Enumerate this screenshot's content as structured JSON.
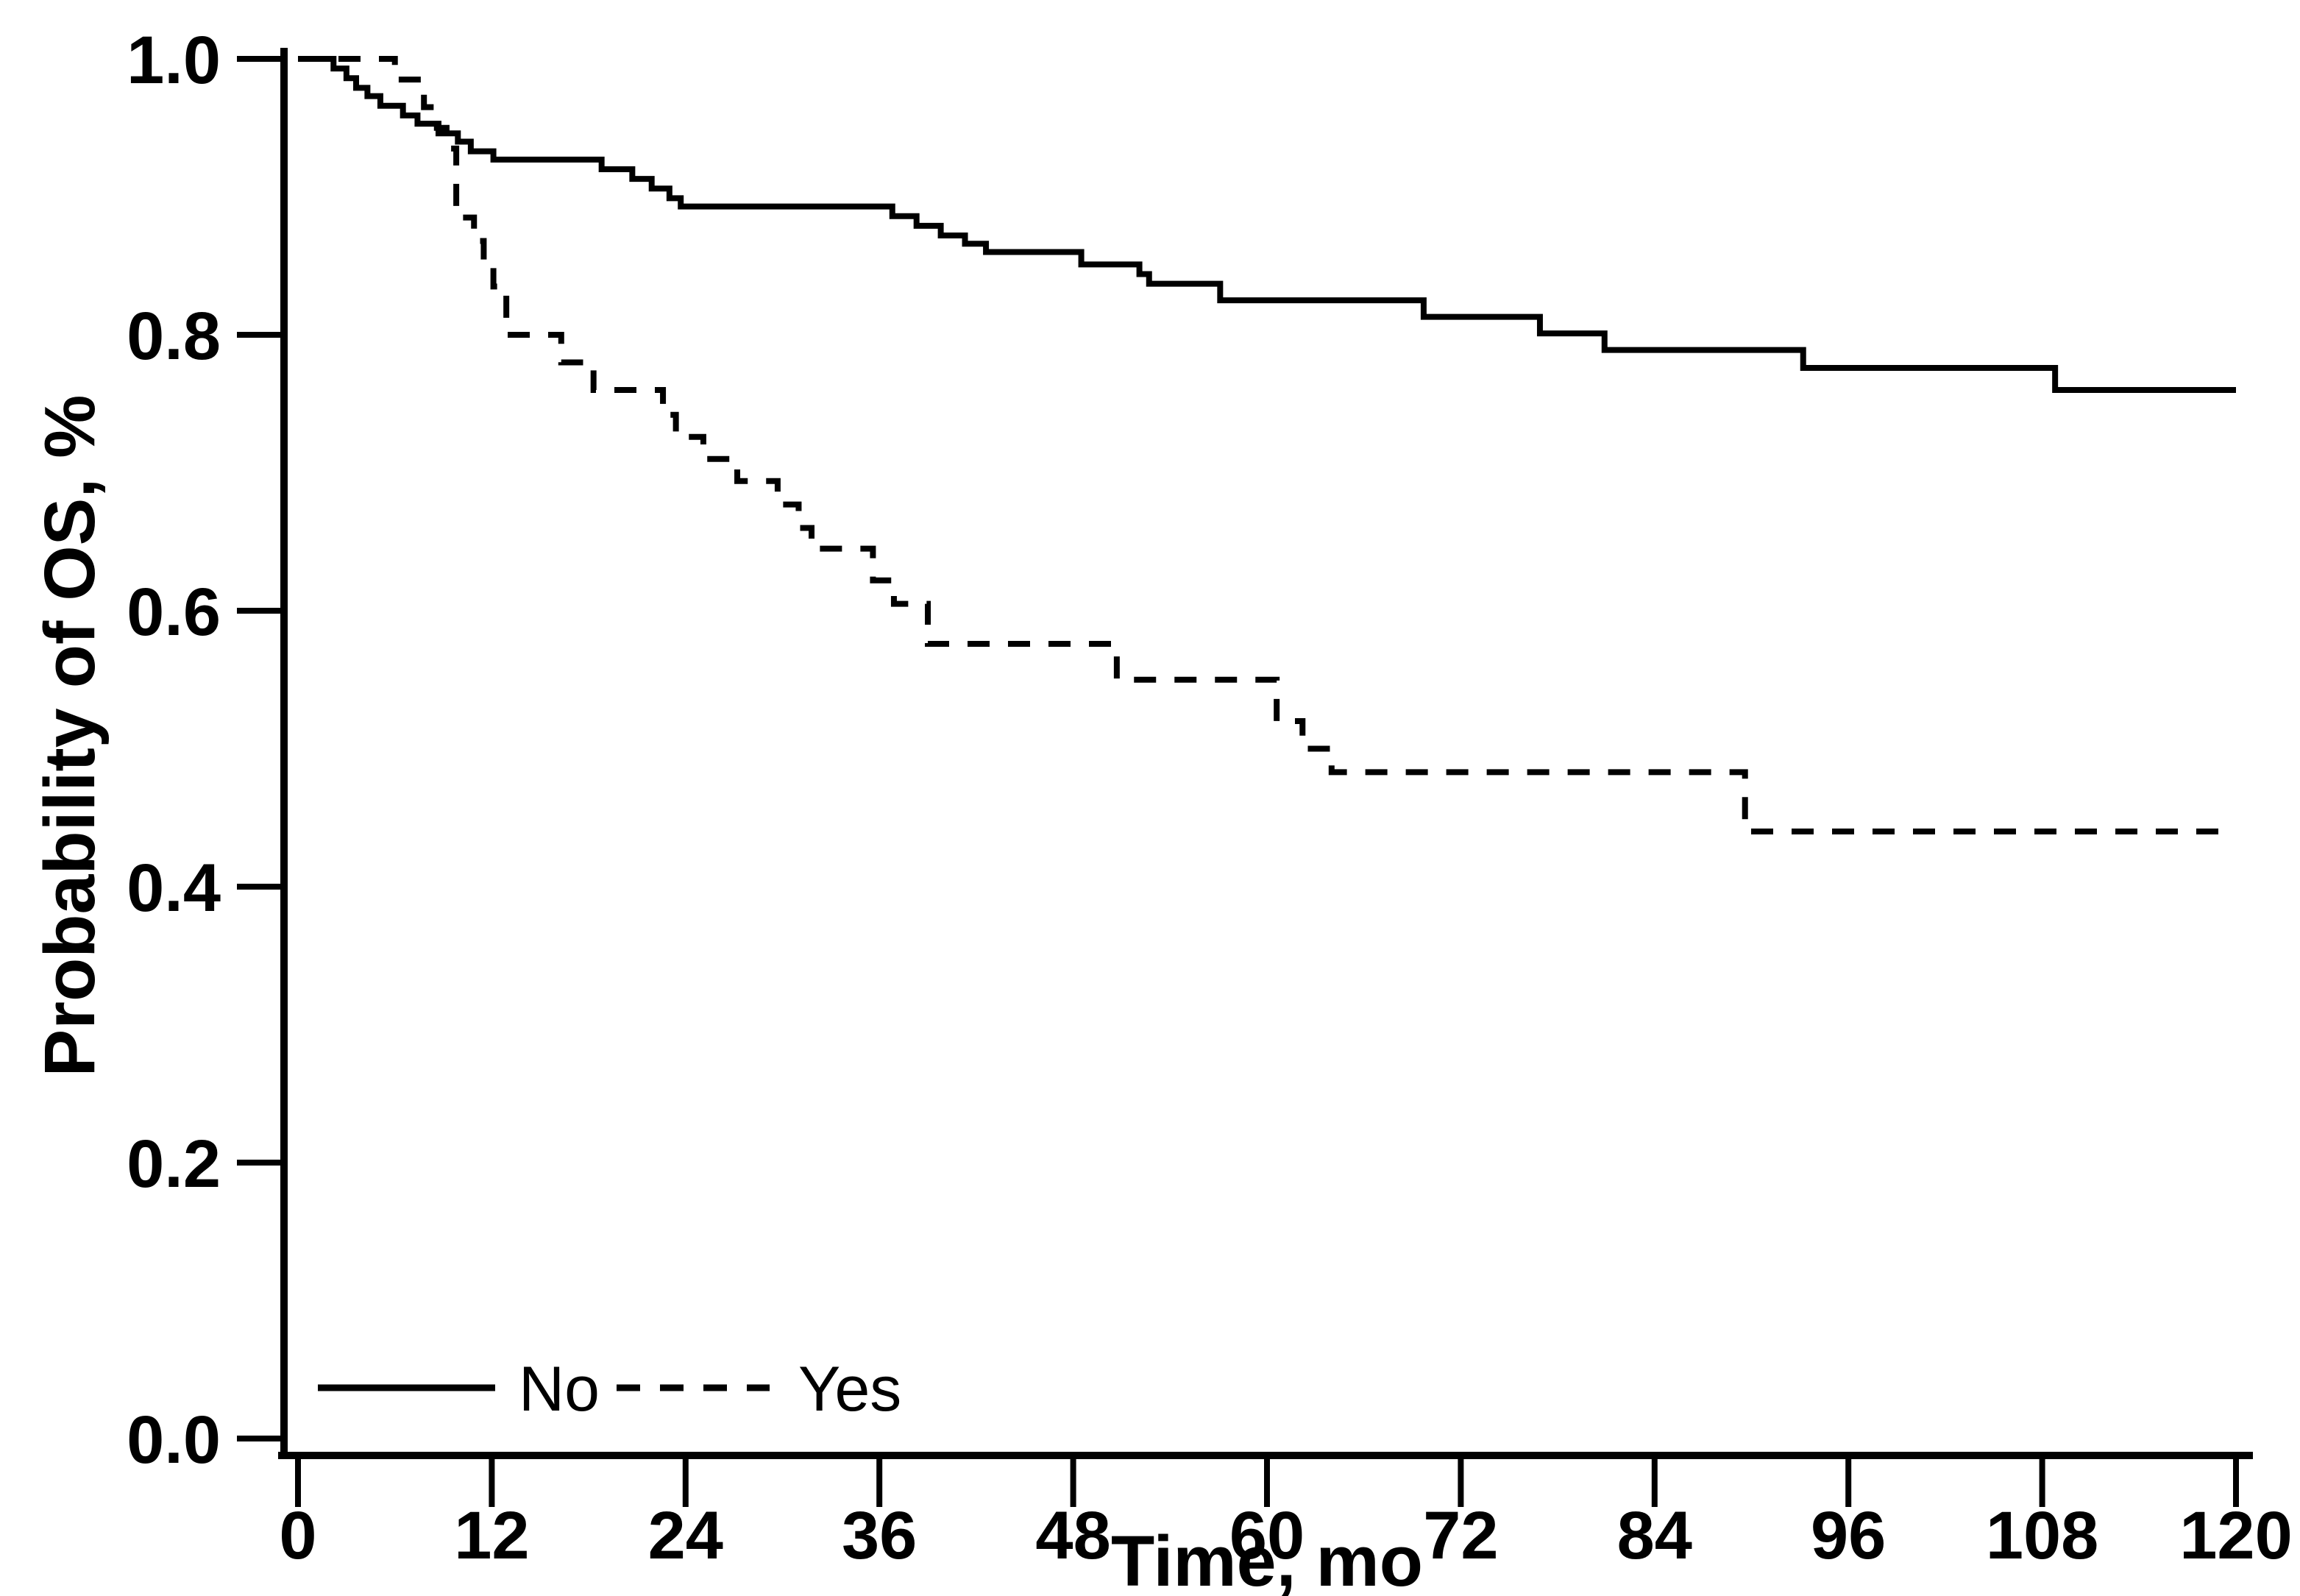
{
  "page": {
    "background_color": "#ffffff",
    "foreground_color": "#000000"
  },
  "chart_data": {
    "type": "line",
    "subtype": "kaplan-meier-step",
    "title": "",
    "xlabel": "Time, mo",
    "ylabel": "Probability of OS, %",
    "xlim": [
      0,
      120
    ],
    "ylim": [
      0.0,
      1.0
    ],
    "grid": false,
    "x_ticks": [
      {
        "value": 0,
        "label": "0"
      },
      {
        "value": 12,
        "label": "12"
      },
      {
        "value": 24,
        "label": "24"
      },
      {
        "value": 36,
        "label": "36"
      },
      {
        "value": 48,
        "label": "48"
      },
      {
        "value": 60,
        "label": "60"
      },
      {
        "value": 72,
        "label": "72"
      },
      {
        "value": 84,
        "label": "84"
      },
      {
        "value": 96,
        "label": "96"
      },
      {
        "value": 108,
        "label": "108"
      },
      {
        "value": 120,
        "label": "120"
      }
    ],
    "y_ticks": [
      {
        "value": 0.0,
        "label": "0.0"
      },
      {
        "value": 0.2,
        "label": "0.2"
      },
      {
        "value": 0.4,
        "label": "0.4"
      },
      {
        "value": 0.6,
        "label": "0.6"
      },
      {
        "value": 0.8,
        "label": "0.8"
      },
      {
        "value": 1.0,
        "label": "1.0"
      }
    ],
    "legend": {
      "position": "inside-bottom-left",
      "items": [
        {
          "label": "No",
          "line_style": "solid"
        },
        {
          "label": "Yes",
          "line_style": "dashed"
        }
      ]
    },
    "series": [
      {
        "name": "No",
        "line_style": "solid",
        "color": "#000000",
        "points": [
          [
            0,
            1.0
          ],
          [
            2.2,
            0.993
          ],
          [
            3.0,
            0.986
          ],
          [
            3.6,
            0.979
          ],
          [
            4.3,
            0.973
          ],
          [
            5.1,
            0.966
          ],
          [
            6.5,
            0.959
          ],
          [
            7.4,
            0.953
          ],
          [
            8.7,
            0.946
          ],
          [
            9.9,
            0.94
          ],
          [
            10.7,
            0.933
          ],
          [
            12.1,
            0.927
          ],
          [
            18.8,
            0.92
          ],
          [
            20.7,
            0.913
          ],
          [
            21.9,
            0.906
          ],
          [
            23.0,
            0.899
          ],
          [
            23.7,
            0.893
          ],
          [
            36.8,
            0.886
          ],
          [
            38.3,
            0.879
          ],
          [
            39.8,
            0.872
          ],
          [
            41.3,
            0.866
          ],
          [
            42.6,
            0.86
          ],
          [
            48.5,
            0.851
          ],
          [
            52.1,
            0.844
          ],
          [
            52.7,
            0.837
          ],
          [
            57.1,
            0.825
          ],
          [
            69.7,
            0.813
          ],
          [
            76.9,
            0.801
          ],
          [
            80.9,
            0.789
          ],
          [
            93.2,
            0.776
          ],
          [
            108.8,
            0.76
          ]
        ],
        "end_time": 120,
        "end_value": 0.76
      },
      {
        "name": "Yes",
        "line_style": "dashed",
        "color": "#000000",
        "points": [
          [
            0,
            1.0
          ],
          [
            6.0,
            0.985
          ],
          [
            7.8,
            0.965
          ],
          [
            8.6,
            0.95
          ],
          [
            9.2,
            0.935
          ],
          [
            9.8,
            0.885
          ],
          [
            10.9,
            0.868
          ],
          [
            11.5,
            0.85
          ],
          [
            12.1,
            0.835
          ],
          [
            12.9,
            0.8
          ],
          [
            16.3,
            0.78
          ],
          [
            18.3,
            0.76
          ],
          [
            22.6,
            0.742
          ],
          [
            23.4,
            0.726
          ],
          [
            25.1,
            0.71
          ],
          [
            27.2,
            0.694
          ],
          [
            29.7,
            0.677
          ],
          [
            31.0,
            0.66
          ],
          [
            31.8,
            0.645
          ],
          [
            35.6,
            0.622
          ],
          [
            36.9,
            0.605
          ],
          [
            39.0,
            0.576
          ],
          [
            50.7,
            0.55
          ],
          [
            60.6,
            0.52
          ],
          [
            62.2,
            0.5
          ],
          [
            64.0,
            0.483
          ],
          [
            89.6,
            0.44
          ]
        ],
        "end_time": 120,
        "end_value": 0.44
      }
    ]
  }
}
